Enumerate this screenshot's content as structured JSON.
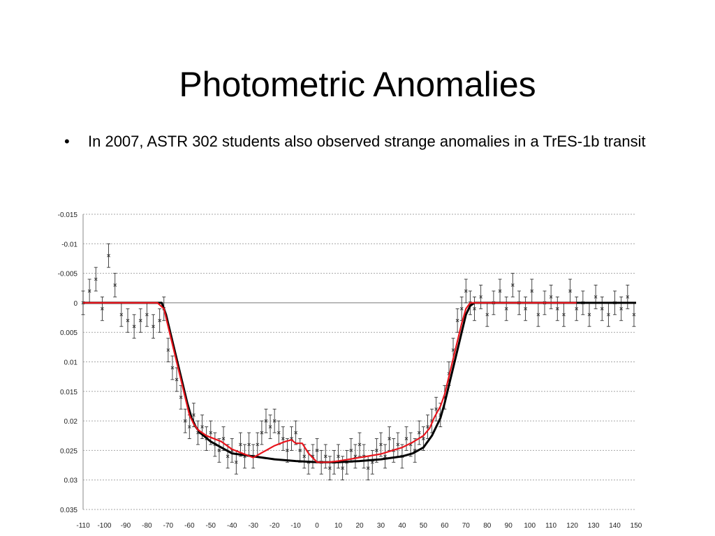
{
  "slide": {
    "title": "Photometric Anomalies",
    "bullets": [
      "In 2007, ASTR 302 students also observed strange anomalies in a TrES-1b transit"
    ]
  },
  "chart_data": {
    "type": "scatter",
    "title": "",
    "xlabel": "",
    "ylabel": "",
    "xlim": [
      -110,
      150
    ],
    "ylim": [
      -0.015,
      0.035
    ],
    "y_inverted": true,
    "grid": "horizontal dotted",
    "x_ticks": [
      "-110",
      "-100",
      "-90",
      "-80",
      "-70",
      "-60",
      "-50",
      "-40",
      "-30",
      "-20",
      "-10",
      "0",
      "10",
      "20",
      "30",
      "40",
      "50",
      "60",
      "70",
      "80",
      "90",
      "100",
      "110",
      "120",
      "130",
      "140",
      "150"
    ],
    "y_ticks": [
      "-0.015",
      "-0.01",
      "-0.005",
      "0",
      "0.005",
      "0.01",
      "0.015",
      "0.02",
      "0.025",
      "0.03",
      "0.035"
    ],
    "colors": {
      "points": "#333333",
      "model_fit": "#000000",
      "anomaly_fit": "#e8141c",
      "grid": "#a6a6a6"
    },
    "series": [
      {
        "marker": "x with error bars",
        "x": [
          -110,
          -107,
          -104,
          -101,
          -98,
          -95,
          -92,
          -89,
          -86,
          -83,
          -80,
          -77,
          -74,
          -72,
          -70,
          -68,
          -66,
          -64,
          -62,
          -60,
          -58,
          -56,
          -54,
          -52,
          -50,
          -48,
          -46,
          -44,
          -42,
          -40,
          -38,
          -36,
          -34,
          -32,
          -30,
          -28,
          -26,
          -24,
          -22,
          -20,
          -18,
          -16,
          -14,
          -12,
          -10,
          -8,
          -6,
          -4,
          -2,
          0,
          2,
          4,
          6,
          8,
          10,
          12,
          14,
          16,
          18,
          20,
          22,
          24,
          26,
          28,
          30,
          32,
          34,
          36,
          38,
          40,
          42,
          44,
          46,
          48,
          50,
          52,
          54,
          56,
          58,
          60,
          62,
          64,
          66,
          68,
          70,
          72,
          74,
          77,
          80,
          83,
          86,
          89,
          92,
          95,
          98,
          101,
          104,
          107,
          110,
          113,
          116,
          119,
          122,
          125,
          128,
          131,
          134,
          137,
          140,
          143,
          146,
          149
        ],
        "y": [
          0.0,
          -0.002,
          -0.004,
          0.001,
          -0.008,
          -0.003,
          0.002,
          0.003,
          0.004,
          0.003,
          0.002,
          0.004,
          0.003,
          0.001,
          0.008,
          0.011,
          0.013,
          0.016,
          0.02,
          0.021,
          0.019,
          0.022,
          0.021,
          0.023,
          0.022,
          0.024,
          0.025,
          0.023,
          0.026,
          0.025,
          0.027,
          0.024,
          0.026,
          0.024,
          0.026,
          0.024,
          0.022,
          0.02,
          0.021,
          0.02,
          0.022,
          0.023,
          0.025,
          0.023,
          0.022,
          0.025,
          0.026,
          0.027,
          0.026,
          0.025,
          0.027,
          0.026,
          0.028,
          0.027,
          0.026,
          0.028,
          0.027,
          0.025,
          0.026,
          0.024,
          0.026,
          0.028,
          0.027,
          0.025,
          0.024,
          0.026,
          0.023,
          0.025,
          0.024,
          0.026,
          0.023,
          0.024,
          0.025,
          0.022,
          0.023,
          0.021,
          0.02,
          0.018,
          0.019,
          0.016,
          0.012,
          0.008,
          0.003,
          0.001,
          -0.002,
          0.0,
          0.001,
          -0.001,
          0.002,
          0.0,
          -0.002,
          0.001,
          -0.003,
          0.0,
          0.001,
          -0.002,
          0.002,
          0.0,
          -0.001,
          0.001,
          0.002,
          -0.002,
          0.001,
          0.0,
          0.002,
          -0.001,
          0.001,
          0.002,
          0.0,
          0.001,
          -0.001,
          0.002
        ]
      },
      {
        "marker": "line",
        "x": [
          -110,
          -73,
          -71,
          -69,
          -67,
          -65,
          -63,
          -61,
          -59,
          -57,
          -55,
          -50,
          -45,
          -40,
          -30,
          -20,
          -10,
          0,
          10,
          20,
          30,
          40,
          45,
          50,
          52,
          54,
          56,
          58,
          60,
          62,
          64,
          66,
          68,
          70,
          72,
          74,
          80,
          90,
          100,
          110,
          120,
          130,
          140,
          150
        ],
        "y": [
          0.0,
          0.0,
          0.002,
          0.005,
          0.008,
          0.011,
          0.014,
          0.017,
          0.0195,
          0.021,
          0.022,
          0.0235,
          0.0245,
          0.0255,
          0.026,
          0.0265,
          0.0268,
          0.027,
          0.027,
          0.0268,
          0.0265,
          0.026,
          0.0255,
          0.0245,
          0.0235,
          0.0225,
          0.021,
          0.0195,
          0.017,
          0.014,
          0.011,
          0.008,
          0.005,
          0.002,
          0.0005,
          0.0,
          0.0,
          0.0,
          0.0,
          0.0,
          0.0,
          0.0,
          0.0,
          0.0
        ]
      },
      {
        "marker": "line",
        "x": [
          -110,
          -75,
          -72,
          -70,
          -68,
          -66,
          -64,
          -62,
          -60,
          -58,
          -56,
          -52,
          -45,
          -40,
          -30,
          -25,
          -20,
          -15,
          -12,
          -10,
          -7,
          -4,
          0,
          5,
          10,
          20,
          30,
          40,
          45,
          50,
          53,
          55,
          58,
          60,
          62,
          64,
          66,
          68,
          70,
          72,
          74,
          78,
          85,
          100,
          110,
          120,
          122
        ],
        "y": [
          0.0,
          0.0,
          0.001,
          0.004,
          0.007,
          0.01,
          0.013,
          0.016,
          0.019,
          0.0205,
          0.0215,
          0.0225,
          0.0235,
          0.0248,
          0.0262,
          0.0252,
          0.0242,
          0.0235,
          0.0232,
          0.0238,
          0.0238,
          0.0255,
          0.027,
          0.027,
          0.0268,
          0.0262,
          0.0256,
          0.0245,
          0.0236,
          0.0225,
          0.0212,
          0.0195,
          0.0175,
          0.0155,
          0.0125,
          0.0095,
          0.0065,
          0.0035,
          0.001,
          0.0,
          0.0,
          0.0,
          0.0,
          0.0,
          0.0,
          0.0,
          0.0
        ]
      }
    ]
  }
}
